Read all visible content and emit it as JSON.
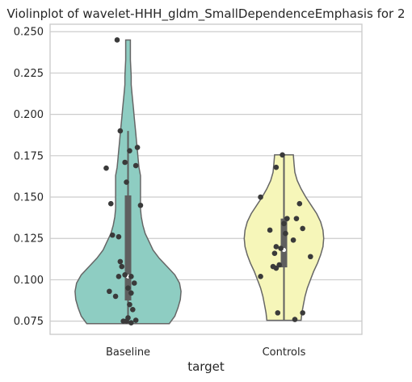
{
  "chart_data": {
    "type": "violin",
    "title": "Violinplot of wavelet-HHH_gldm_SmallDependenceEmphasis for 2",
    "xlabel": "target",
    "ylabel": "",
    "ylim": [
      0.067,
      0.2545
    ],
    "yticks": [
      0.075,
      0.1,
      0.125,
      0.15,
      0.175,
      0.2,
      0.225,
      0.25
    ],
    "ytick_labels": [
      "0.075",
      "0.100",
      "0.125",
      "0.150",
      "0.175",
      "0.200",
      "0.225",
      "0.250"
    ],
    "grid": true,
    "categories": [
      "Baseline",
      "Controls"
    ],
    "series": [
      {
        "category": "Baseline",
        "color": "#8ecdc2",
        "range": [
          0.0735,
          0.245
        ],
        "box": {
          "q1": 0.0875,
          "median": 0.102,
          "q3": 0.151,
          "whisker_low": 0.0735,
          "whisker_high": 0.19
        },
        "density": [
          [
            0.0735,
            0.53
          ],
          [
            0.078,
            0.6
          ],
          [
            0.083,
            0.64
          ],
          [
            0.088,
            0.67
          ],
          [
            0.093,
            0.68
          ],
          [
            0.098,
            0.66
          ],
          [
            0.103,
            0.6
          ],
          [
            0.108,
            0.5
          ],
          [
            0.113,
            0.4
          ],
          [
            0.118,
            0.32
          ],
          [
            0.123,
            0.27
          ],
          [
            0.128,
            0.22
          ],
          [
            0.133,
            0.19
          ],
          [
            0.138,
            0.17
          ],
          [
            0.143,
            0.16
          ],
          [
            0.148,
            0.16
          ],
          [
            0.153,
            0.16
          ],
          [
            0.158,
            0.16
          ],
          [
            0.163,
            0.16
          ],
          [
            0.168,
            0.14
          ],
          [
            0.173,
            0.13
          ],
          [
            0.178,
            0.12
          ],
          [
            0.183,
            0.11
          ],
          [
            0.188,
            0.1
          ],
          [
            0.193,
            0.09
          ],
          [
            0.198,
            0.08
          ],
          [
            0.203,
            0.07
          ],
          [
            0.208,
            0.06
          ],
          [
            0.213,
            0.05
          ],
          [
            0.218,
            0.04
          ],
          [
            0.223,
            0.04
          ],
          [
            0.228,
            0.035
          ],
          [
            0.233,
            0.03
          ],
          [
            0.238,
            0.03
          ],
          [
            0.245,
            0.03
          ]
        ],
        "points": [
          [
            -0.07,
            0.245
          ],
          [
            -0.05,
            0.19
          ],
          [
            -0.14,
            0.1675
          ],
          [
            0.06,
            0.18
          ],
          [
            0.01,
            0.178
          ],
          [
            -0.02,
            0.171
          ],
          [
            0.05,
            0.169
          ],
          [
            -0.01,
            0.159
          ],
          [
            -0.11,
            0.146
          ],
          [
            0.08,
            0.145
          ],
          [
            -0.1,
            0.127
          ],
          [
            -0.06,
            0.126
          ],
          [
            -0.05,
            0.111
          ],
          [
            -0.04,
            0.108
          ],
          [
            -0.02,
            0.103
          ],
          [
            0.02,
            0.102
          ],
          [
            -0.06,
            0.102
          ],
          [
            0.04,
            0.098
          ],
          [
            0.0,
            0.095
          ],
          [
            -0.12,
            0.093
          ],
          [
            0.02,
            0.092
          ],
          [
            -0.08,
            0.09
          ],
          [
            0.01,
            0.085
          ],
          [
            0.03,
            0.082
          ],
          [
            0.0,
            0.077
          ],
          [
            -0.01,
            0.075
          ],
          [
            0.05,
            0.0755
          ],
          [
            0.02,
            0.074
          ],
          [
            -0.03,
            0.075
          ]
        ]
      },
      {
        "category": "Controls",
        "color": "#f6f6b9",
        "range": [
          0.0755,
          0.1755
        ],
        "box": {
          "q1": 0.1075,
          "median": 0.118,
          "q3": 0.137,
          "whisker_low": 0.0755,
          "whisker_high": 0.1755
        },
        "density": [
          [
            0.0755,
            0.22
          ],
          [
            0.08,
            0.23
          ],
          [
            0.085,
            0.25
          ],
          [
            0.09,
            0.27
          ],
          [
            0.095,
            0.3
          ],
          [
            0.1,
            0.34
          ],
          [
            0.105,
            0.38
          ],
          [
            0.11,
            0.43
          ],
          [
            0.115,
            0.47
          ],
          [
            0.12,
            0.5
          ],
          [
            0.125,
            0.51
          ],
          [
            0.13,
            0.5
          ],
          [
            0.135,
            0.47
          ],
          [
            0.14,
            0.42
          ],
          [
            0.145,
            0.35
          ],
          [
            0.15,
            0.28
          ],
          [
            0.155,
            0.22
          ],
          [
            0.16,
            0.17
          ],
          [
            0.165,
            0.14
          ],
          [
            0.17,
            0.13
          ],
          [
            0.1755,
            0.12
          ]
        ],
        "points": [
          [
            -0.01,
            0.1755
          ],
          [
            -0.05,
            0.168
          ],
          [
            -0.15,
            0.15
          ],
          [
            0.1,
            0.146
          ],
          [
            0.02,
            0.137
          ],
          [
            0.08,
            0.137
          ],
          [
            0.0,
            0.134
          ],
          [
            -0.09,
            0.13
          ],
          [
            0.12,
            0.131
          ],
          [
            0.01,
            0.128
          ],
          [
            0.06,
            0.124
          ],
          [
            -0.05,
            0.12
          ],
          [
            -0.02,
            0.119
          ],
          [
            -0.06,
            0.116
          ],
          [
            0.17,
            0.114
          ],
          [
            -0.03,
            0.109
          ],
          [
            -0.05,
            0.107
          ],
          [
            -0.07,
            0.108
          ],
          [
            -0.15,
            0.102
          ],
          [
            -0.04,
            0.08
          ],
          [
            0.12,
            0.08
          ],
          [
            0.07,
            0.076
          ]
        ]
      }
    ]
  }
}
